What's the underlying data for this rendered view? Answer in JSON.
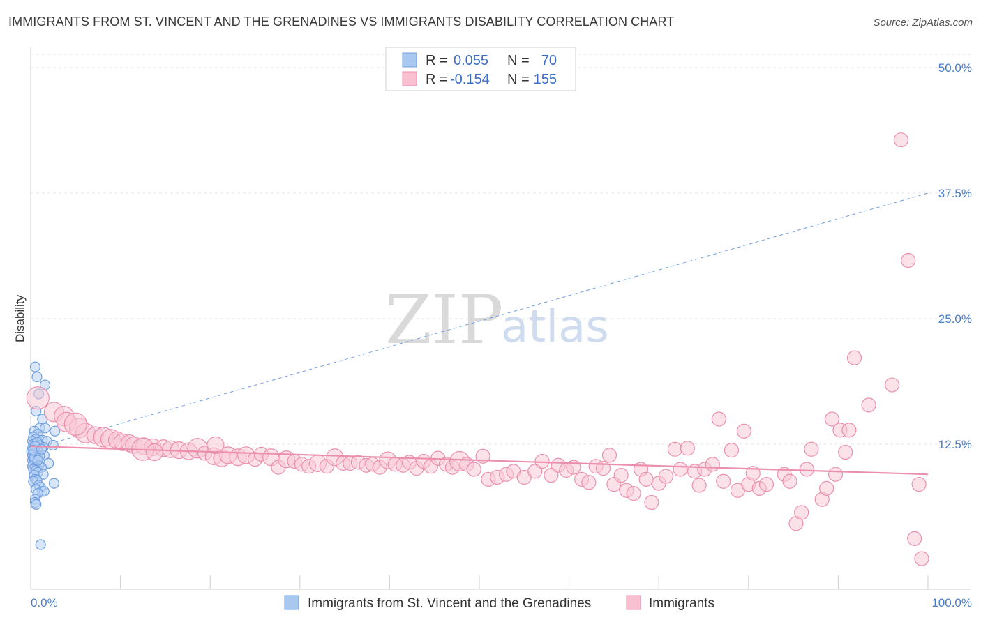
{
  "title": "IMMIGRANTS FROM ST. VINCENT AND THE GRENADINES VS IMMIGRANTS DISABILITY CORRELATION CHART",
  "source": "Source: ZipAtlas.com",
  "watermark": {
    "zip": "ZIP",
    "atlas": "atlas"
  },
  "legend": {
    "r_label": "R =",
    "n_label": "N =",
    "rows": [
      {
        "r": "0.055",
        "n": "70",
        "color": "#a8c8f0",
        "stroke": "#6f9fe0"
      },
      {
        "r": "-0.154",
        "n": "155",
        "color": "#f8c0d0",
        "stroke": "#ec8fae"
      }
    ]
  },
  "bottom_legend": [
    {
      "label": "Immigrants from St. Vincent and the Grenadines",
      "color": "#a8c8f0",
      "stroke": "#6f9fe0"
    },
    {
      "label": "Immigrants",
      "color": "#f8c0d0",
      "stroke": "#ec8fae"
    }
  ],
  "chart_data": {
    "type": "scatter",
    "ylabel": "Disability",
    "xlabel": "",
    "xlim": [
      0,
      100
    ],
    "ylim": [
      0,
      53
    ],
    "x_tick_labels": [
      "0.0%",
      "100.0%"
    ],
    "y_ticks": [
      {
        "value": 12.5,
        "label": "12.5%"
      },
      {
        "value": 25.0,
        "label": "25.0%"
      },
      {
        "value": 37.5,
        "label": "37.5%"
      },
      {
        "value": 50.0,
        "label": "50.0%"
      }
    ],
    "grid": "horizontal-dashed",
    "legend_position": "top-center",
    "series": [
      {
        "name": "Immigrants from St. Vincent and the Grenadines",
        "color": "#6f9fe0",
        "fill": "#b8d2f2",
        "trend": {
          "x": [
            0,
            100
          ],
          "y": [
            12.0,
            37.5
          ],
          "style": "dashed"
        },
        "points": [
          [
            0.5,
            20.2,
            7
          ],
          [
            0.7,
            19.2,
            7
          ],
          [
            1.6,
            18.4,
            7
          ],
          [
            0.9,
            17.5,
            7
          ],
          [
            0.6,
            15.8,
            7
          ],
          [
            1.3,
            15.0,
            7
          ],
          [
            1.0,
            14.1,
            7
          ],
          [
            1.6,
            14.1,
            7
          ],
          [
            2.7,
            13.8,
            7
          ],
          [
            0.4,
            13.8,
            7
          ],
          [
            0.8,
            13.5,
            7
          ],
          [
            0.3,
            13.2,
            7
          ],
          [
            0.6,
            13.0,
            7
          ],
          [
            1.3,
            12.9,
            7
          ],
          [
            0.2,
            12.8,
            7
          ],
          [
            1.8,
            12.8,
            7
          ],
          [
            0.5,
            12.6,
            7
          ],
          [
            0.3,
            12.5,
            7
          ],
          [
            2.5,
            12.4,
            7
          ],
          [
            0.9,
            12.4,
            7
          ],
          [
            0.6,
            12.2,
            7
          ],
          [
            1.4,
            12.2,
            7
          ],
          [
            0.2,
            12.1,
            7
          ],
          [
            0.4,
            12.0,
            7
          ],
          [
            0.7,
            11.9,
            7
          ],
          [
            0.1,
            11.8,
            7
          ],
          [
            0.9,
            11.7,
            7
          ],
          [
            0.3,
            11.6,
            7
          ],
          [
            0.5,
            11.5,
            7
          ],
          [
            0.2,
            11.4,
            7
          ],
          [
            1.5,
            11.4,
            7
          ],
          [
            0.6,
            11.2,
            7
          ],
          [
            0.3,
            11.1,
            7
          ],
          [
            0.8,
            11.0,
            7
          ],
          [
            0.2,
            10.9,
            7
          ],
          [
            0.4,
            10.8,
            7
          ],
          [
            0.6,
            10.6,
            7
          ],
          [
            2.0,
            10.6,
            7
          ],
          [
            0.3,
            10.5,
            7
          ],
          [
            0.9,
            10.4,
            7
          ],
          [
            0.2,
            10.3,
            7
          ],
          [
            0.5,
            10.2,
            7
          ],
          [
            0.7,
            10.1,
            7
          ],
          [
            1.2,
            10.2,
            7
          ],
          [
            0.3,
            10.0,
            7
          ],
          [
            0.6,
            9.9,
            7
          ],
          [
            0.8,
            9.7,
            7
          ],
          [
            1.4,
            9.5,
            7
          ],
          [
            0.4,
            9.4,
            7
          ],
          [
            0.5,
            9.0,
            7
          ],
          [
            0.7,
            8.9,
            7
          ],
          [
            0.3,
            8.8,
            7
          ],
          [
            2.6,
            8.6,
            7
          ],
          [
            0.9,
            8.4,
            7
          ],
          [
            1.1,
            8.2,
            7
          ],
          [
            0.6,
            8.0,
            7
          ],
          [
            1.3,
            7.8,
            7
          ],
          [
            1.5,
            7.8,
            7
          ],
          [
            0.8,
            7.6,
            7
          ],
          [
            0.5,
            7.0,
            7
          ],
          [
            0.5,
            6.7,
            7
          ],
          [
            0.6,
            6.5,
            7
          ],
          [
            1.1,
            2.5,
            7
          ],
          [
            0.4,
            11.2,
            7
          ],
          [
            0.7,
            12.7,
            7
          ],
          [
            1.0,
            11.3,
            7
          ],
          [
            0.5,
            12.3,
            7
          ],
          [
            0.3,
            11.9,
            7
          ],
          [
            1.2,
            12.0,
            7
          ],
          [
            0.8,
            10.9,
            7
          ]
        ]
      },
      {
        "name": "Immigrants",
        "color": "#ec8fae",
        "fill": "#f8c8d6",
        "trend": {
          "x": [
            0,
            100
          ],
          "y": [
            12.3,
            9.5
          ],
          "style": "solid"
        },
        "points": [
          [
            0.8,
            17.1,
            16
          ],
          [
            2.6,
            15.7,
            14
          ],
          [
            3.7,
            15.3,
            14
          ],
          [
            4.0,
            14.7,
            14
          ],
          [
            5.4,
            14.1,
            14
          ],
          [
            6.1,
            13.6,
            14
          ],
          [
            7.2,
            13.4,
            12
          ],
          [
            8.1,
            13.2,
            14
          ],
          [
            8.9,
            13.0,
            14
          ],
          [
            9.6,
            12.9,
            12
          ],
          [
            10.2,
            12.7,
            12
          ],
          [
            11.0,
            12.6,
            12
          ],
          [
            11.5,
            12.4,
            12
          ],
          [
            12.6,
            12.3,
            12
          ],
          [
            13.6,
            12.2,
            12
          ],
          [
            14.8,
            12.1,
            12
          ],
          [
            15.6,
            12.0,
            12
          ],
          [
            16.5,
            11.9,
            12
          ],
          [
            17.6,
            11.8,
            12
          ],
          [
            18.6,
            12.1,
            14
          ],
          [
            19.4,
            11.6,
            10
          ],
          [
            20.4,
            11.3,
            12
          ],
          [
            21.3,
            11.1,
            12
          ],
          [
            22.0,
            11.4,
            12
          ],
          [
            23.1,
            11.2,
            12
          ],
          [
            24.0,
            11.4,
            12
          ],
          [
            25.0,
            11.0,
            10
          ],
          [
            25.7,
            11.5,
            10
          ],
          [
            26.8,
            11.2,
            12
          ],
          [
            27.6,
            10.2,
            10
          ],
          [
            28.5,
            11.0,
            12
          ],
          [
            29.4,
            10.8,
            10
          ],
          [
            30.2,
            10.5,
            10
          ],
          [
            31.0,
            10.3,
            10
          ],
          [
            32.0,
            10.6,
            12
          ],
          [
            33.0,
            10.3,
            10
          ],
          [
            33.9,
            11.2,
            12
          ],
          [
            34.8,
            10.6,
            10
          ],
          [
            35.6,
            10.6,
            10
          ],
          [
            36.5,
            10.7,
            10
          ],
          [
            37.4,
            10.4,
            10
          ],
          [
            38.1,
            10.5,
            10
          ],
          [
            38.9,
            10.2,
            10
          ],
          [
            39.8,
            10.9,
            12
          ],
          [
            40.6,
            10.5,
            10
          ],
          [
            41.5,
            10.4,
            10
          ],
          [
            42.2,
            10.7,
            10
          ],
          [
            43.0,
            10.1,
            10
          ],
          [
            43.8,
            10.8,
            10
          ],
          [
            44.6,
            10.3,
            10
          ],
          [
            45.4,
            11.1,
            10
          ],
          [
            46.3,
            10.5,
            10
          ],
          [
            47.0,
            10.2,
            10
          ],
          [
            47.8,
            10.8,
            14
          ],
          [
            48.6,
            10.5,
            10
          ],
          [
            49.4,
            10.0,
            10
          ],
          [
            50.4,
            11.3,
            10
          ],
          [
            51.0,
            9.0,
            10
          ],
          [
            52.0,
            9.2,
            10
          ],
          [
            53.0,
            9.5,
            10
          ],
          [
            53.8,
            9.8,
            10
          ],
          [
            55.0,
            9.2,
            10
          ],
          [
            56.2,
            9.8,
            10
          ],
          [
            57.0,
            10.8,
            10
          ],
          [
            58.0,
            9.4,
            10
          ],
          [
            58.8,
            10.4,
            10
          ],
          [
            59.7,
            9.9,
            10
          ],
          [
            60.5,
            10.2,
            10
          ],
          [
            61.4,
            9.0,
            10
          ],
          [
            62.2,
            8.7,
            10
          ],
          [
            63.0,
            10.3,
            10
          ],
          [
            63.8,
            10.1,
            10
          ],
          [
            64.5,
            11.4,
            10
          ],
          [
            65.0,
            8.5,
            10
          ],
          [
            65.8,
            9.4,
            10
          ],
          [
            66.4,
            7.9,
            10
          ],
          [
            67.2,
            7.6,
            10
          ],
          [
            68.0,
            10.0,
            10
          ],
          [
            68.6,
            9.0,
            10
          ],
          [
            69.2,
            6.7,
            10
          ],
          [
            70.0,
            8.6,
            10
          ],
          [
            70.8,
            9.3,
            10
          ],
          [
            71.8,
            12.0,
            10
          ],
          [
            72.4,
            10.0,
            10
          ],
          [
            73.2,
            12.1,
            10
          ],
          [
            74.0,
            9.8,
            10
          ],
          [
            74.5,
            8.4,
            10
          ],
          [
            75.1,
            10.0,
            10
          ],
          [
            76.0,
            10.5,
            10
          ],
          [
            76.7,
            15.0,
            10
          ],
          [
            77.2,
            8.8,
            10
          ],
          [
            78.1,
            11.9,
            10
          ],
          [
            78.8,
            7.9,
            10
          ],
          [
            79.5,
            13.8,
            10
          ],
          [
            80.0,
            8.5,
            10
          ],
          [
            80.5,
            9.6,
            10
          ],
          [
            81.2,
            8.1,
            10
          ],
          [
            82.0,
            8.5,
            10
          ],
          [
            84.0,
            9.5,
            10
          ],
          [
            84.6,
            8.8,
            10
          ],
          [
            85.3,
            4.6,
            10
          ],
          [
            85.9,
            5.7,
            10
          ],
          [
            86.5,
            10.0,
            10
          ],
          [
            87.0,
            12.0,
            10
          ],
          [
            88.2,
            7.0,
            10
          ],
          [
            88.7,
            8.1,
            10
          ],
          [
            89.3,
            15.0,
            10
          ],
          [
            89.7,
            9.5,
            10
          ],
          [
            90.2,
            13.9,
            10
          ],
          [
            90.8,
            11.7,
            10
          ],
          [
            91.2,
            13.9,
            10
          ],
          [
            91.8,
            21.1,
            10
          ],
          [
            93.4,
            16.4,
            10
          ],
          [
            96.0,
            18.4,
            10
          ],
          [
            97.0,
            42.8,
            10
          ],
          [
            97.8,
            30.8,
            10
          ],
          [
            98.5,
            3.1,
            10
          ],
          [
            99.0,
            8.5,
            10
          ],
          [
            99.3,
            1.1,
            10
          ],
          [
            12.5,
            12.0,
            16
          ],
          [
            5.0,
            14.5,
            16
          ],
          [
            20.6,
            12.4,
            12
          ],
          [
            13.8,
            11.7,
            12
          ]
        ]
      }
    ]
  }
}
